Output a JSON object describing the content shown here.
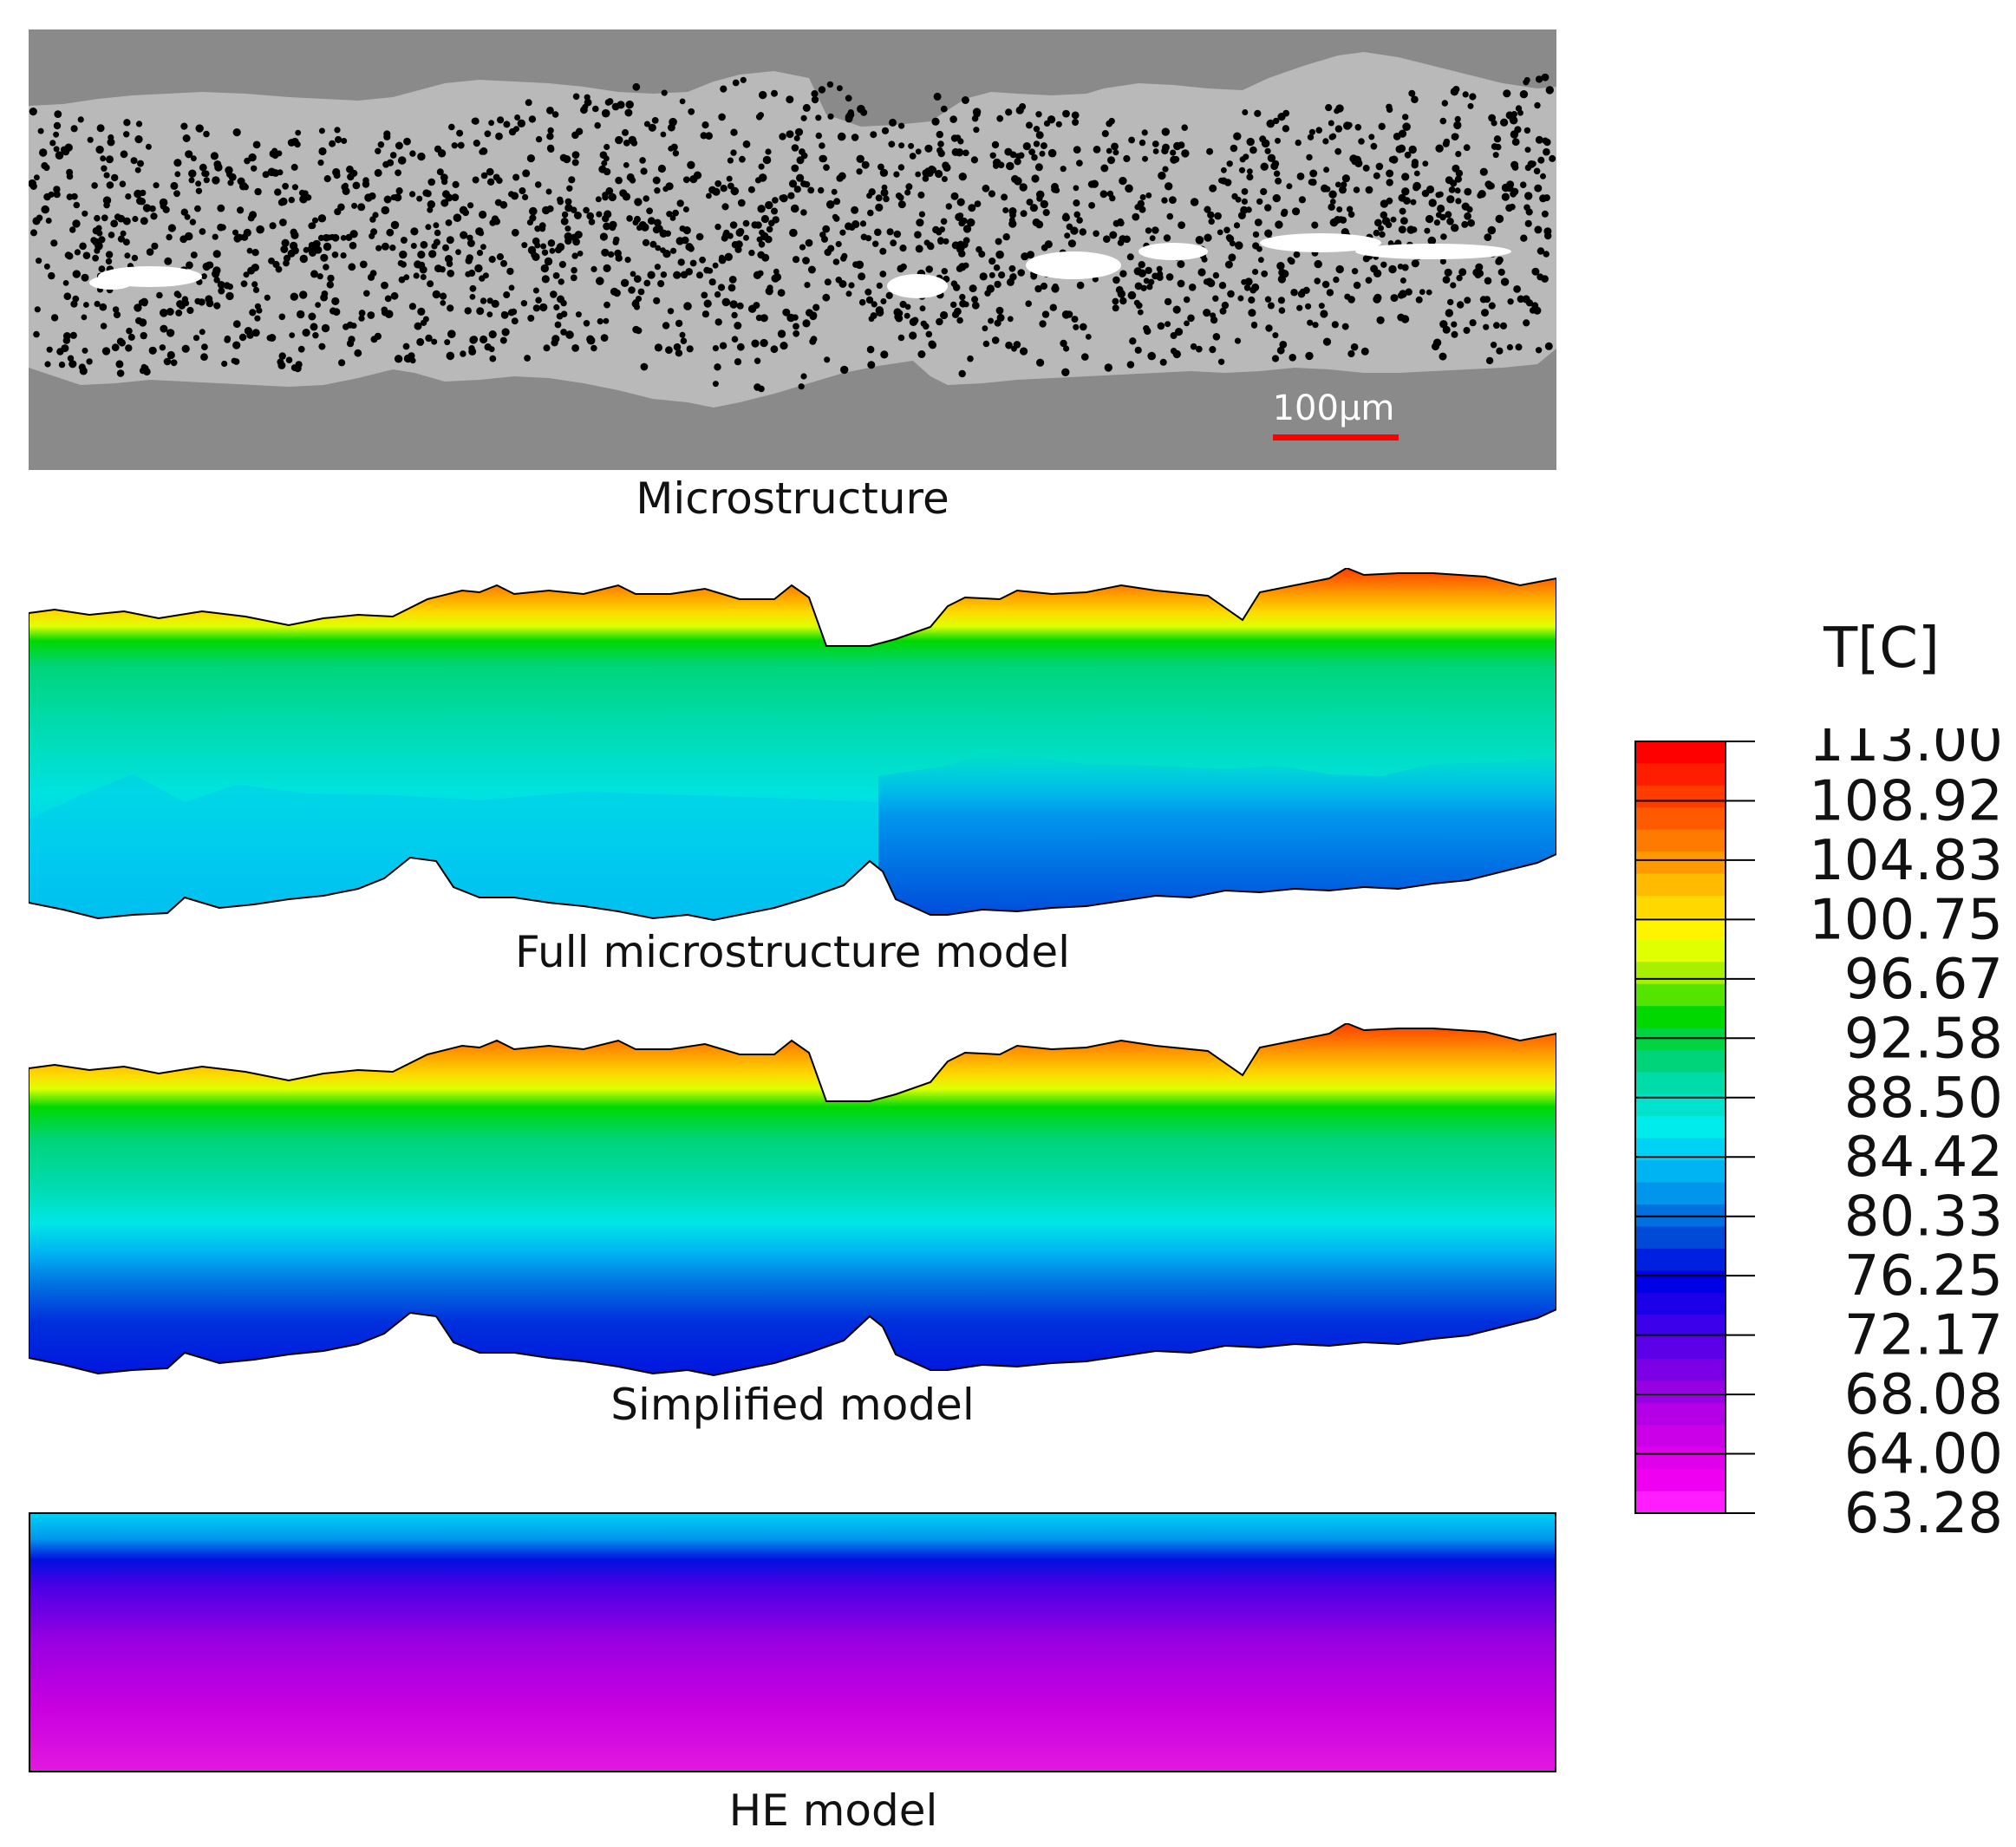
{
  "panels": {
    "microstructure": {
      "caption": "Microstructure",
      "scale_bar_label": "100μm"
    },
    "full": {
      "caption": "Full microstructure model"
    },
    "simplified": {
      "caption": "Simplified model"
    },
    "he": {
      "caption": "HE model"
    }
  },
  "legend": {
    "title": "T[C]",
    "labels": [
      "113.00",
      "108.92",
      "104.83",
      "100.75",
      "96.67",
      "92.58",
      "88.50",
      "84.42",
      "80.33",
      "76.25",
      "72.17",
      "68.08",
      "64.00",
      "63.28"
    ],
    "band_colors": [
      "#ff0000",
      "#ff1d00",
      "#ff3b00",
      "#ff5a00",
      "#ff7a00",
      "#ff9900",
      "#ffbb00",
      "#ffd800",
      "#fff400",
      "#e0ff00",
      "#a8f000",
      "#55e400",
      "#00d800",
      "#00d440",
      "#00d47a",
      "#00dca8",
      "#00e2cc",
      "#00ecec",
      "#00d2f4",
      "#00b4f2",
      "#0096ec",
      "#0070e0",
      "#004ad8",
      "#0020e0",
      "#0000e6",
      "#1c00e8",
      "#3c00ea",
      "#5c00e8",
      "#7c00e6",
      "#9800e4",
      "#b400e6",
      "#cc00e8",
      "#e000ec",
      "#f000f0",
      "#ff1cff"
    ]
  },
  "colors": {
    "matrix_gray": "#b9b9b9",
    "background_gray": "#8a8a8a",
    "fiber_black": "#000000",
    "void_white": "#ffffff",
    "scale_bar_red": "#ff0000"
  }
}
